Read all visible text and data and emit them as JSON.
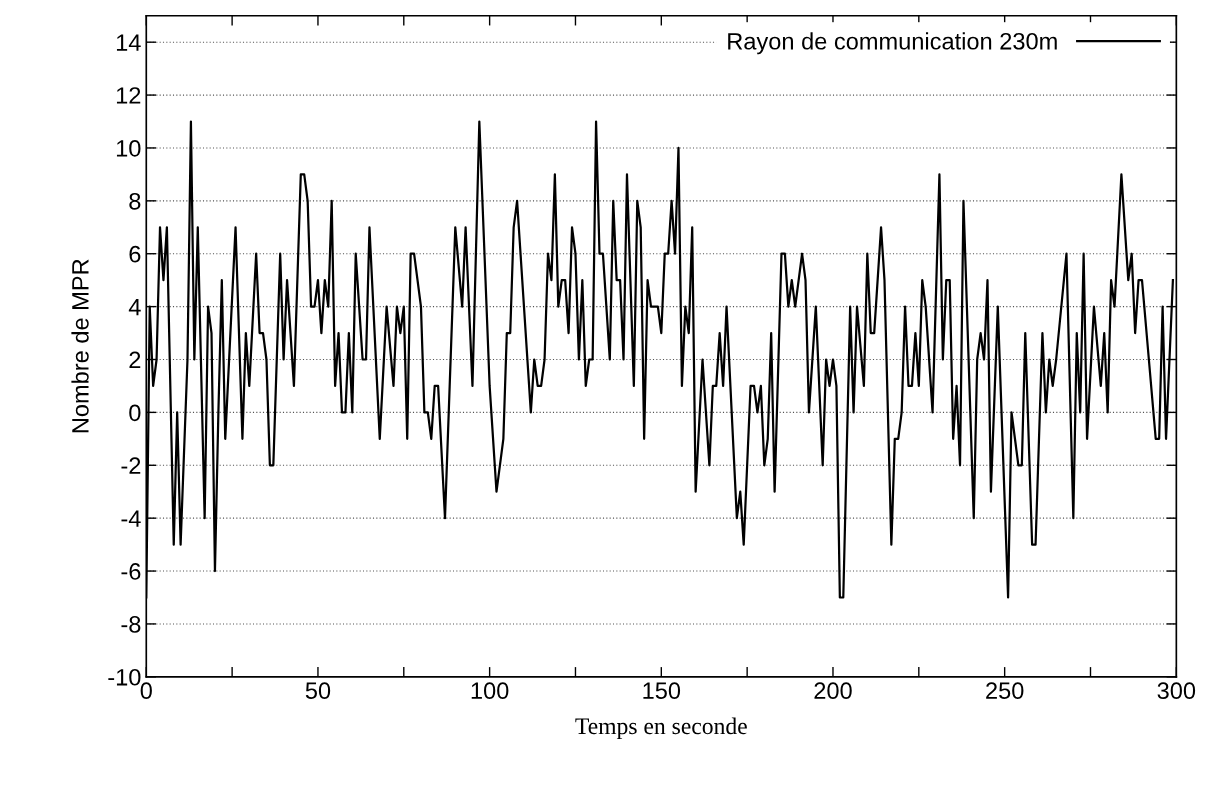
{
  "chart_data": {
    "type": "line",
    "xlabel": "Temps en seconde",
    "ylabel": "Nombre de MPR",
    "xlim": [
      0,
      300
    ],
    "ylim": [
      -10,
      15
    ],
    "xticks": [
      0,
      {
        "value": 25,
        "label": null
      },
      50,
      {
        "value": 75,
        "label": null
      },
      100,
      {
        "value": 125,
        "label": null
      },
      150,
      {
        "value": 175,
        "label": null
      },
      200,
      {
        "value": 225,
        "label": null
      },
      250,
      {
        "value": 275,
        "label": null
      },
      300
    ],
    "yticks": [
      -10,
      -8,
      -6,
      -4,
      -2,
      0,
      2,
      4,
      6,
      8,
      10,
      12,
      14
    ],
    "grid": "y",
    "legend": "top right",
    "marker": "none",
    "line_style": "solid",
    "series": [
      {
        "name": "Rayon de communication 230m",
        "color": "#000000",
        "x": [
          0,
          1,
          2,
          3,
          4,
          5,
          6,
          8,
          9,
          10,
          12,
          13,
          14,
          15,
          17,
          18,
          19,
          20,
          21,
          22,
          23,
          26,
          28,
          29,
          30,
          32,
          33,
          34,
          35,
          36,
          37,
          39,
          40,
          41,
          43,
          45,
          46,
          47,
          48,
          49,
          50,
          51,
          52,
          53,
          54,
          55,
          56,
          57,
          58,
          59,
          60,
          61,
          63,
          64,
          65,
          68,
          70,
          72,
          73,
          74,
          75,
          76,
          77,
          78,
          80,
          81,
          82,
          83,
          84,
          85,
          87,
          90,
          92,
          93,
          95,
          97,
          100,
          102,
          104,
          105,
          106,
          107,
          108,
          112,
          113,
          114,
          115,
          116,
          117,
          118,
          119,
          120,
          121,
          122,
          123,
          124,
          125,
          126,
          127,
          128,
          129,
          130,
          131,
          132,
          133,
          135,
          136,
          137,
          138,
          139,
          140,
          142,
          143,
          144,
          145,
          146,
          147,
          149,
          150,
          151,
          152,
          153,
          154,
          155,
          156,
          157,
          158,
          159,
          160,
          162,
          164,
          165,
          166,
          167,
          168,
          169,
          172,
          173,
          174,
          176,
          177,
          178,
          179,
          180,
          181,
          182,
          183,
          185,
          186,
          187,
          188,
          189,
          191,
          192,
          193,
          195,
          197,
          198,
          199,
          200,
          201,
          202,
          203,
          205,
          206,
          207,
          209,
          210,
          211,
          212,
          214,
          215,
          217,
          218,
          219,
          220,
          221,
          222,
          223,
          224,
          225,
          226,
          227,
          229,
          231,
          232,
          233,
          234,
          235,
          236,
          237,
          238,
          241,
          242,
          243,
          244,
          245,
          246,
          248,
          251,
          252,
          254,
          255,
          256,
          258,
          259,
          261,
          262,
          263,
          264,
          265,
          268,
          270,
          271,
          272,
          273,
          274,
          276,
          278,
          279,
          280,
          281,
          282,
          284,
          286,
          287,
          288,
          289,
          290,
          292,
          294,
          295,
          296,
          297,
          299
        ],
        "values": [
          -7,
          4,
          1,
          2,
          7,
          5,
          7,
          -5,
          0,
          -5,
          2,
          11,
          2,
          7,
          -4,
          4,
          3,
          -6,
          0,
          5,
          -1,
          7,
          -1,
          3,
          1,
          6,
          3,
          3,
          2,
          -2,
          -2,
          6,
          2,
          5,
          1,
          9,
          9,
          8,
          4,
          4,
          5,
          3,
          5,
          4,
          8,
          1,
          3,
          0,
          0,
          3,
          0,
          6,
          2,
          2,
          7,
          -1,
          4,
          1,
          4,
          3,
          4,
          -1,
          6,
          6,
          4,
          0,
          0,
          -1,
          1,
          1,
          -4,
          7,
          4,
          7,
          1,
          11,
          1,
          -3,
          -1,
          3,
          3,
          7,
          8,
          0,
          2,
          1,
          1,
          2,
          6,
          5,
          9,
          4,
          5,
          5,
          3,
          7,
          6,
          2,
          5,
          1,
          2,
          2,
          11,
          6,
          6,
          2,
          8,
          5,
          5,
          2,
          9,
          1,
          8,
          7,
          -1,
          5,
          4,
          4,
          3,
          6,
          6,
          8,
          6,
          10,
          1,
          4,
          3,
          7,
          -3,
          2,
          -2,
          1,
          1,
          3,
          1,
          4,
          -4,
          -3,
          -5,
          1,
          1,
          0,
          1,
          -2,
          -1,
          3,
          -3,
          6,
          6,
          4,
          5,
          4,
          6,
          5,
          0,
          4,
          -2,
          2,
          1,
          2,
          1,
          -7,
          -7,
          4,
          0,
          4,
          1,
          6,
          3,
          3,
          7,
          5,
          -5,
          -1,
          -1,
          0,
          4,
          1,
          1,
          3,
          1,
          5,
          4,
          0,
          9,
          2,
          5,
          5,
          -1,
          1,
          -2,
          8,
          -4,
          2,
          3,
          2,
          5,
          -3,
          4,
          -7,
          0,
          -2,
          -2,
          3,
          -5,
          -5,
          3,
          0,
          2,
          1,
          2,
          6,
          -4,
          3,
          0,
          6,
          -1,
          4,
          1,
          3,
          0,
          5,
          4,
          9,
          5,
          6,
          3,
          5,
          5,
          2,
          -1,
          -1,
          4,
          -1,
          5
        ]
      }
    ]
  }
}
